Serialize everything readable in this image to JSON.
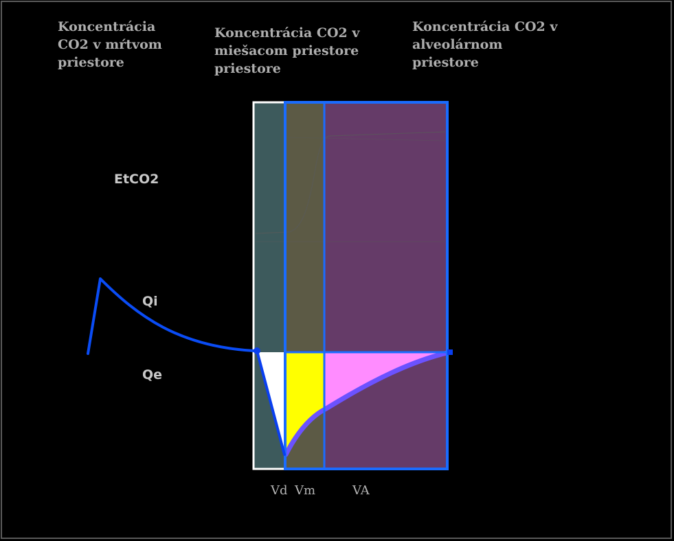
{
  "headings": {
    "dead_space": "Koncentrácia\nCO2 v mŕtvom\npriestore",
    "mixing_space": "Koncentrácia CO2 v\nmiešacom priestore\npriestore",
    "alveolar_space": "Koncentrácia CO2 v\nalveolárnom\npriestore"
  },
  "labels": {
    "etco2": "EtCO2",
    "qi": "Qi",
    "qe": "Qe",
    "vd": "Vd",
    "vm": "Vm",
    "va": "VA"
  },
  "colors": {
    "background": "#000000",
    "dead_space_fill": "#3d5a5c",
    "mixing_space_fill": "#5c5a45",
    "alveolar_space_fill": "#653b68",
    "blue_outline": "#1a6cff",
    "flow_curve": "#0a4cf5",
    "vd_area": "#ffffff",
    "vm_area": "#ffff00",
    "va_area": "#ff8cff",
    "return_curve": "#6b52ff"
  }
}
